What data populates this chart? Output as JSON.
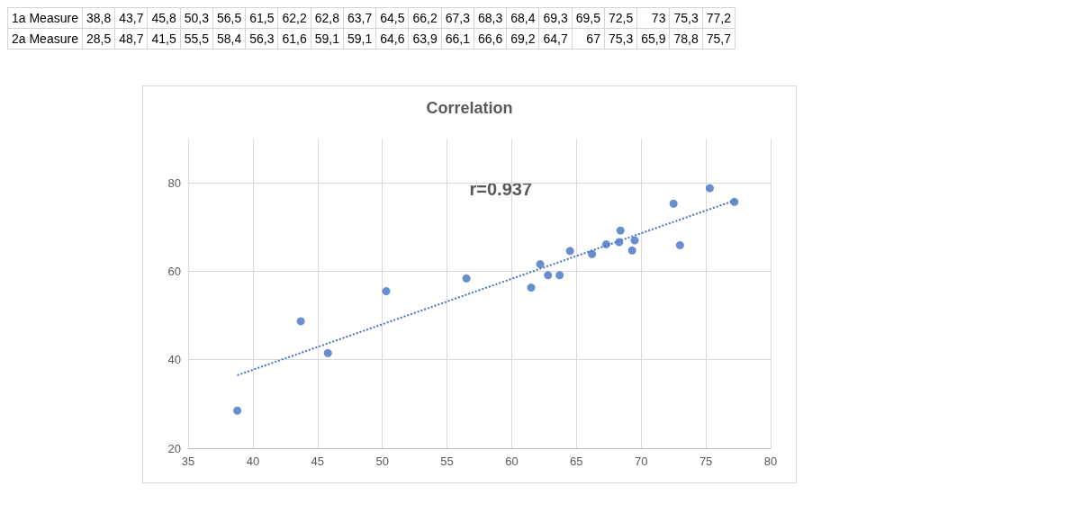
{
  "chart_data": [
    {
      "type": "other",
      "annotations": [
        "1a Measure",
        "38,8",
        "43,7",
        "45,8",
        "50,3",
        "56,5",
        "61,5",
        "62,2",
        "62,8",
        "63,7",
        "64,5",
        "66,2",
        "67,3",
        "68,3",
        "68,4",
        "69,3",
        "69,5",
        "72,5",
        "73",
        "75,3",
        "77,2",
        "2a Measure",
        "28,5",
        "48,7",
        "41,5",
        "55,5",
        "58,4",
        "56,3",
        "61,6",
        "59,1",
        "59,1",
        "64,6",
        "63,9",
        "66,1",
        "66,6",
        "69,2",
        "64,7",
        "67",
        "75,3",
        "65,9",
        "78,8",
        "75,7"
      ]
    },
    {
      "type": "scatter",
      "title": "Correlation",
      "x": [
        38.8,
        43.7,
        45.8,
        50.3,
        56.5,
        61.5,
        62.2,
        62.8,
        63.7,
        64.5,
        66.2,
        67.3,
        68.3,
        68.4,
        69.3,
        69.5,
        72.5,
        73,
        75.3,
        77.2
      ],
      "series": [
        {
          "type": "scatter",
          "color": "#4472c4",
          "values": [
            28.5,
            48.7,
            41.5,
            55.5,
            58.4,
            56.3,
            61.6,
            59.1,
            59.1,
            64.6,
            63.9,
            66.1,
            66.6,
            69.2,
            64.7,
            67,
            75.3,
            65.9,
            78.8,
            75.7
          ]
        },
        {
          "type": "line",
          "color": "#4472c4",
          "line_style": "dotted",
          "marker": "none",
          "x": [
            38.8,
            77.2
          ],
          "values": [
            36.5,
            76
          ]
        }
      ],
      "xlim": [
        35,
        80
      ],
      "xticks": [
        35,
        40,
        45,
        50,
        55,
        60,
        65,
        70,
        75,
        80
      ],
      "ylim": [
        20,
        90
      ],
      "yticks": [
        20,
        40,
        60,
        80
      ],
      "grid": true,
      "marker": "circle",
      "annotations": [
        "r=0.937"
      ]
    }
  ]
}
